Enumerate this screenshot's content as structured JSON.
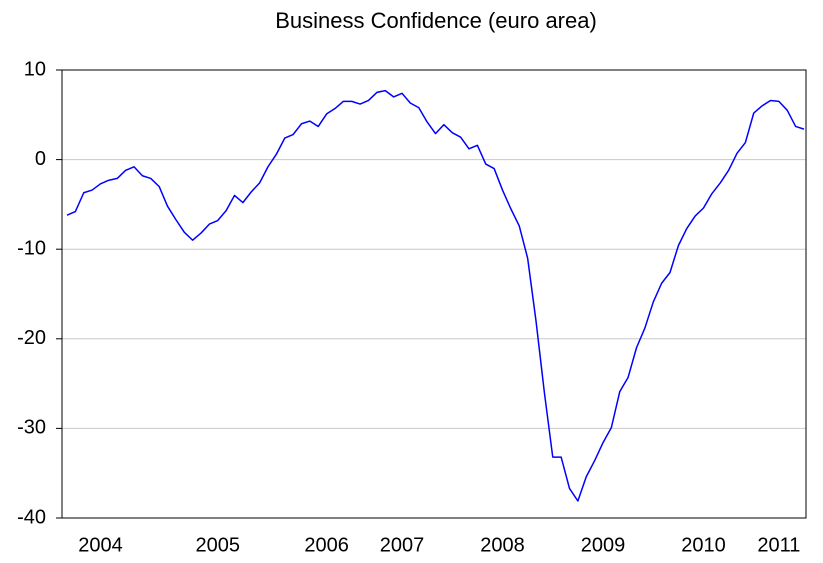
{
  "chart_data": {
    "type": "line",
    "title": "Business Confidence (euro area)",
    "categories": [
      null,
      null,
      null,
      null,
      "2004",
      null,
      null,
      null,
      null,
      null,
      null,
      null,
      null,
      null,
      null,
      null,
      null,
      null,
      "2005",
      null,
      null,
      null,
      null,
      null,
      null,
      null,
      null,
      null,
      null,
      null,
      null,
      "2006",
      null,
      null,
      null,
      null,
      null,
      null,
      null,
      null,
      "2007",
      null,
      null,
      null,
      null,
      null,
      null,
      null,
      null,
      null,
      null,
      null,
      "2008",
      null,
      null,
      null,
      null,
      null,
      null,
      null,
      null,
      null,
      null,
      null,
      "2009",
      null,
      null,
      null,
      null,
      null,
      null,
      null,
      null,
      null,
      null,
      null,
      "2010",
      null,
      null,
      null,
      null,
      null,
      null,
      null,
      null,
      "2011",
      null,
      null,
      null
    ],
    "values": [
      -6.2,
      -5.8,
      -3.7,
      -3.4,
      -2.7,
      -2.3,
      -2.1,
      -1.2,
      -0.8,
      -1.8,
      -2.1,
      -3.0,
      -5.2,
      -6.7,
      -8.1,
      -9.0,
      -8.2,
      -7.2,
      -6.8,
      -5.7,
      -4.0,
      -4.8,
      -3.6,
      -2.6,
      -0.8,
      0.6,
      2.4,
      2.8,
      4.0,
      4.3,
      3.7,
      5.1,
      5.7,
      6.5,
      6.5,
      6.2,
      6.6,
      7.5,
      7.7,
      7.0,
      7.4,
      6.3,
      5.8,
      4.2,
      2.9,
      3.9,
      3.0,
      2.5,
      1.2,
      1.6,
      -0.5,
      -1.0,
      -3.4,
      -5.5,
      -7.4,
      -11,
      -18,
      -26,
      -33.2,
      -33.2,
      -36.7,
      -38.1,
      -35.4,
      -33.6,
      -31.6,
      -29.9,
      -25.9,
      -24.3,
      -21,
      -18.8,
      -15.9,
      -13.8,
      -12.6,
      -9.6,
      -7.7,
      -6.3,
      -5.4,
      -3.8,
      -2.6,
      -1.2,
      0.7,
      1.9,
      5.2,
      6.0,
      6.6,
      6.5,
      5.5,
      3.7,
      3.4
    ],
    "color": "#0000ff",
    "ylim": [
      -40,
      10
    ],
    "yticks": [
      -40,
      -30,
      -20,
      -10,
      0,
      10
    ],
    "grid": true
  }
}
